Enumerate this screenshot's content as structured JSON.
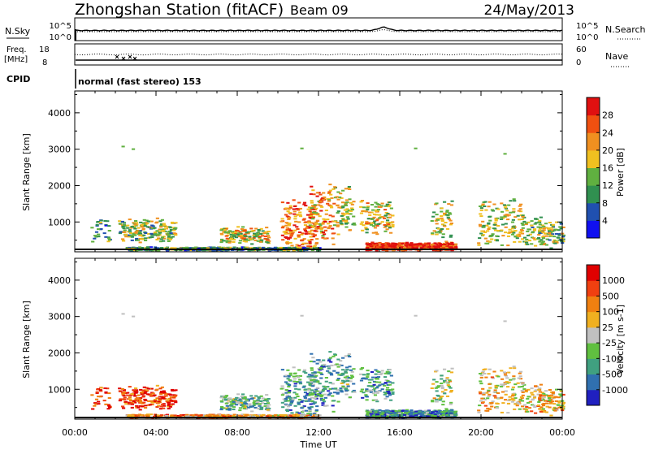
{
  "header": {
    "title": "Zhongshan Station (fitACF)",
    "beam": "Beam 09",
    "date": "24/May/2013"
  },
  "top_panel": {
    "left_label": "N.Sky",
    "left_ticks": [
      "10^5",
      "10^0"
    ],
    "right_label": "N.Search",
    "right_ticks": [
      "10^5",
      "10^0"
    ]
  },
  "freq_panel": {
    "left_label_1": "Freq.",
    "left_label_2": "[MHz]",
    "left_ticks": [
      "18",
      "8"
    ],
    "right_label": "Nave",
    "right_ticks": [
      "60",
      "0"
    ]
  },
  "cpid": {
    "label": "CPID",
    "mode": "normal (fast stereo) 153"
  },
  "chart_data": [
    {
      "type": "heatmap",
      "ylabel": "Slant Range [km]",
      "x_range_hours": [
        0,
        24
      ],
      "ylim": [
        180,
        4600
      ],
      "ytick_values": [
        1000,
        2000,
        3000,
        4000
      ],
      "colorbar": {
        "label": "Power [dB]",
        "tick_labels": [
          "4",
          "8",
          "12",
          "16",
          "20",
          "24",
          "28"
        ],
        "colors": [
          "#1010f0",
          "#2050b0",
          "#309050",
          "#60b040",
          "#f0c020",
          "#f09020",
          "#f05010",
          "#e01010"
        ]
      }
    },
    {
      "type": "heatmap",
      "xlabel": "Time UT",
      "ylabel": "Slant Range [km]",
      "x_range_hours": [
        0,
        24
      ],
      "x_tick_labels": [
        "00:00",
        "04:00",
        "08:00",
        "12:00",
        "16:00",
        "20:00",
        "00:00"
      ],
      "ylim": [
        180,
        4600
      ],
      "ytick_values": [
        1000,
        2000,
        3000,
        4000
      ],
      "colorbar": {
        "label": "Velocity [m s-1]",
        "tick_labels": [
          "1000",
          "500",
          "100",
          "25",
          "-25",
          "-100",
          "-500",
          "-1000"
        ],
        "colors": [
          "#2020c0",
          "#3070b0",
          "#40a080",
          "#60c040",
          "#c0c0c0",
          "#f0b020",
          "#f08010",
          "#f04010",
          "#e00000"
        ]
      }
    }
  ]
}
